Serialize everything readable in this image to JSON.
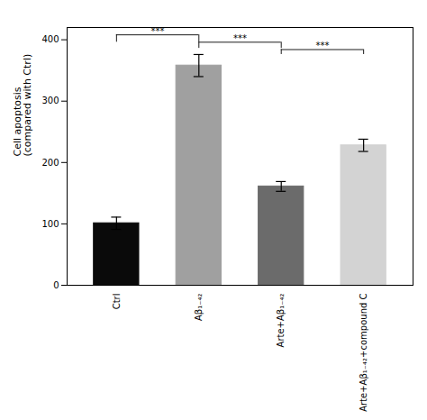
{
  "chart_data": {
    "type": "bar",
    "categories": [
      "Ctrl",
      "Aβ₁₋₄₂",
      "Arte+Aβ₁₋₄₂",
      "Arte+Aβ₁₋₄₂+compound C"
    ],
    "values": [
      101,
      358,
      161,
      228
    ],
    "errors": [
      10,
      18,
      8,
      10
    ],
    "colors": [
      "#0a0a0a",
      "#a0a0a0",
      "#6b6b6b",
      "#d3d3d3"
    ],
    "ylabel": "Cell apoptosis\n(compared with Ctrl)",
    "ylim": [
      0,
      420
    ],
    "yticks": [
      0,
      100,
      200,
      300,
      400
    ],
    "grid": false,
    "annotations": [
      {
        "text": "***",
        "from": "Ctrl",
        "to": "Aβ₁₋₄₂",
        "y": 408,
        "drop": 12
      },
      {
        "text": "***",
        "from": "Aβ₁₋₄₂",
        "to": "Arte+Aβ₁₋₄₂",
        "y": 396,
        "drop": 10
      },
      {
        "text": "***",
        "from": "Arte+Aβ₁₋₄₂",
        "to": "Arte+Aβ₁₋₄₂+compound C",
        "y": 384,
        "drop": 8
      }
    ]
  }
}
